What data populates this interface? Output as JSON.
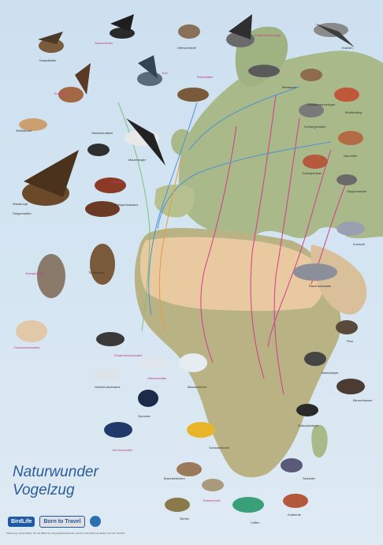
{
  "poster": {
    "title_line1": "Naturwunder",
    "title_line2": "Vogelzug",
    "logos": [
      "BirdLife",
      "Born to Travel",
      ""
    ],
    "footer": "Zeichnung: Andy Waddy. Für die Bilder der Zugvogelillustrationen und die Unterstützung danken wir sehr herzlich.",
    "colors": {
      "sea": "#cfe0ee",
      "land": "#a9b98a",
      "desert": "#e8c9a0",
      "title": "#2a5d9c",
      "route_pink": "#d23a8c",
      "route_blue": "#4a8fd6",
      "route_orange": "#e89a3a",
      "route_green": "#7fc07a"
    }
  },
  "labels": {
    "l1": "Kampfläufer",
    "l2": "Stelzenläufer",
    "l3": "Uferschnepfe",
    "l4": "Großer Brachvogel",
    "l5": "Kranich",
    "l6": "Turmfalke",
    "l7": "Triel",
    "l8": "Rotfußfalke",
    "l9": "Weißstorch",
    "l10": "Bekassine",
    "l11": "Steinschmätzer",
    "l12": "Mauersegler",
    "l13": "Schlangenadler",
    "l14": "Neuntöter",
    "l15": "Rotmilan",
    "l16": "Wiedehopf",
    "l17": "Wespenbussard",
    "l18": "Schwarzmilan",
    "l19": "Steppenweihe",
    "l20": "Kuckuck",
    "l21": "Zwergtaucher",
    "l22": "Turteltaube",
    "l23": "Flussseeschwalbe",
    "l24": "Küstenseeschwalbe",
    "l25": "Rauchschwalbe",
    "l26": "Pirol",
    "l27": "Uferschwalbe",
    "l28": "Gartenrotschwanz",
    "l29": "Blaukehlchen",
    "l30": "Baumpieper",
    "l31": "Sprosser",
    "l32": "Bienenfresser",
    "l33": "Rotkopfwürger",
    "l34": "Mehlschwalbe",
    "l35": "Schwarzstorch",
    "l36": "Braunkehlchen",
    "l37": "Seeadler",
    "l38": "Rotschenkel",
    "l39": "Sichler",
    "l40": "Knäkente",
    "l41": "Löffler",
    "l42": "Bluthänfling",
    "l43": "Schwarzstirnwürger",
    "l44": "Steppenadler"
  }
}
